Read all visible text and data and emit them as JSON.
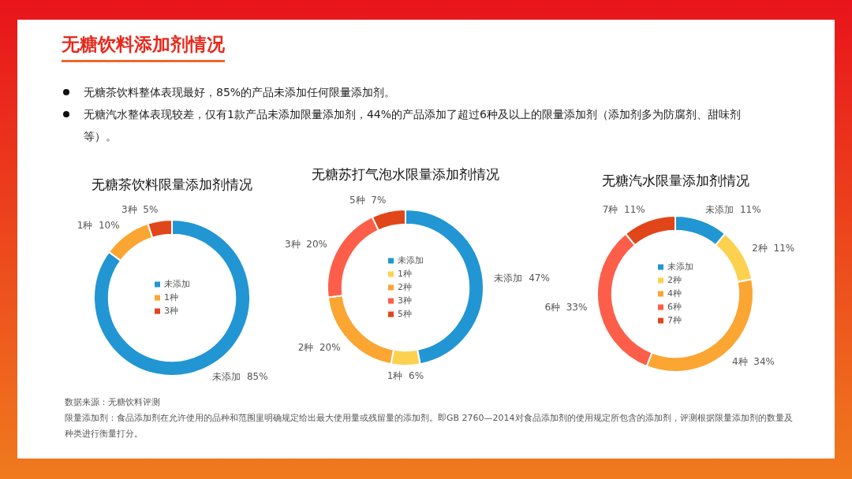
{
  "chart_data": [
    {
      "type": "other",
      "title": "无糖饮料添加剂情况",
      "annotations": [
        "无糖茶饮料整体表现最好，85%的产品未添加任何限量添加剂。",
        "无糖汽水整体表现较差，仅有1款产品未添加限量添加剂，44%的产品添加了超过6种及以上的限量添加剂（添加剂多为防腐剂、甜味剂等）。"
      ]
    },
    {
      "type": "donut",
      "title": "无糖茶饮料限量添加剂情况",
      "categories": [
        "未添加",
        "1种",
        "3种"
      ],
      "values": [
        85,
        10,
        5
      ],
      "value_labels": [
        "85%",
        "10%",
        "5%"
      ],
      "colors": [
        "#2196d3",
        "#fba533",
        "#e0461a"
      ],
      "legend": "center"
    },
    {
      "type": "donut",
      "title": "无糖苏打气泡水限量添加剂情况",
      "categories": [
        "未添加",
        "1种",
        "2种",
        "3种",
        "5种"
      ],
      "values": [
        47,
        6,
        20,
        20,
        7
      ],
      "value_labels": [
        "47%",
        "6%",
        "20%",
        "20%",
        "7%"
      ],
      "colors": [
        "#2196d3",
        "#fdd150",
        "#fba533",
        "#fd5e4a",
        "#e0461a"
      ],
      "legend": "center"
    },
    {
      "type": "donut",
      "title": "无糖汽水限量添加剂情况",
      "categories": [
        "未添加",
        "2种",
        "4种",
        "6种",
        "7种"
      ],
      "values": [
        11,
        11,
        34,
        33,
        11
      ],
      "value_labels": [
        "11%",
        "11%",
        "34%",
        "33%",
        "11%"
      ],
      "colors": [
        "#2196d3",
        "#fdd150",
        "#fba533",
        "#fd5e4a",
        "#e0461a"
      ],
      "legend": "center"
    },
    {
      "type": "other",
      "annotations": [
        "数据来源：无糖饮料评测",
        "限量添加剂：食品添加剂在允许使用的品种和范围里明确规定给出最大使用量或残留量的添加剂。即GB 2760—2014对食品添加剂的使用规定所包含的添加剂，评测根据限量添加剂的数量及种类进行衡量打分。"
      ]
    }
  ]
}
